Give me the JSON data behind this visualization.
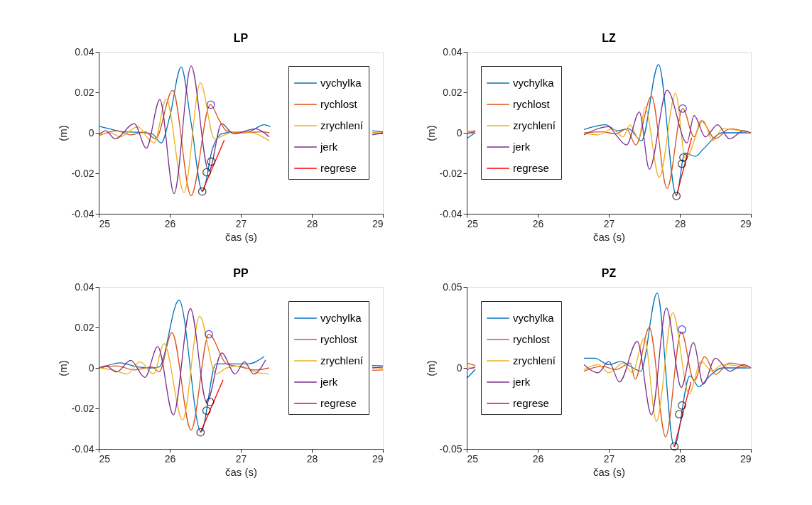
{
  "chart_data": [
    {
      "type": "line",
      "title": "LP",
      "xlabel": "čas (s)",
      "ylabel": "(m)",
      "xlim": [
        25,
        29
      ],
      "xticks": [
        25,
        26,
        27,
        28,
        29
      ],
      "ylim": [
        -0.04,
        0.04
      ],
      "yticks": [
        -0.04,
        -0.02,
        0,
        0.02,
        0.04
      ],
      "grid": false,
      "legend": "top right",
      "line_style": "solid",
      "series": [
        {
          "name": "vychylka",
          "color": "#0072bd",
          "x": [
            25.0,
            25.15,
            25.35,
            25.55,
            25.75,
            25.88,
            26.0,
            26.16,
            26.3,
            26.46,
            26.6,
            26.73,
            26.9,
            27.1,
            27.33,
            27.42,
            27.6,
            28.85,
            29.0
          ],
          "values": [
            0.0033,
            0.002,
            0.0005,
            0.0003,
            -0.0005,
            -0.005,
            0.008,
            0.0325,
            0.005,
            -0.029,
            -0.008,
            -0.0005,
            0.0005,
            0.0005,
            0.004,
            0.003,
            null,
            0.001,
            0.0005
          ]
        },
        {
          "name": "rychlost",
          "color": "#d95319",
          "x": [
            25.0,
            25.25,
            25.45,
            25.65,
            25.8,
            26.04,
            26.3,
            26.57,
            26.7,
            26.8,
            27.0,
            27.3,
            27.4,
            27.6,
            28.85,
            29.0
          ],
          "values": [
            -0.0015,
            0.001,
            -0.001,
            0.0005,
            -0.003,
            0.021,
            -0.031,
            0.014,
            0.006,
            0.001,
            0,
            0.0005,
            0,
            null,
            0,
            -0.0005
          ]
        },
        {
          "name": "zrychlení",
          "color": "#edb120",
          "x": [
            25.0,
            25.17,
            25.3,
            25.55,
            25.7,
            25.78,
            25.95,
            26.2,
            26.43,
            26.63,
            26.77,
            26.9,
            27.1,
            27.25,
            27.4,
            27.6,
            28.85,
            29.0
          ],
          "values": [
            -0.001,
            0,
            -0.002,
            0.003,
            -0.003,
            -0.005,
            0.0166,
            -0.0295,
            0.0247,
            -0.003,
            -0.001,
            0.0005,
            0.0003,
            -0.001,
            -0.004,
            null,
            0,
            0
          ]
        },
        {
          "name": "jerk",
          "color": "#7e2f8e",
          "x": [
            25.0,
            25.1,
            25.23,
            25.5,
            25.67,
            25.86,
            26.06,
            26.3,
            26.55,
            26.73,
            26.9,
            27.2,
            27.4,
            27.6,
            28.85,
            29.0
          ],
          "values": [
            -0.001,
            0.001,
            -0.003,
            0.0045,
            -0.0076,
            0.0164,
            -0.03,
            0.033,
            -0.019,
            0.0045,
            -0.0005,
            0.002,
            -0.002,
            null,
            -0.001,
            0
          ]
        },
        {
          "name": "regrese",
          "color": "#ff0000",
          "x": [
            26.457,
            26.767
          ],
          "values": [
            -0.029,
            -0.0036
          ]
        },
        {
          "type": "scatter",
          "marker": "circle",
          "color": "#000000",
          "x": [
            26.457,
            26.52,
            26.583
          ],
          "values": [
            -0.029,
            -0.0195,
            -0.0142
          ]
        },
        {
          "type": "scatter",
          "marker": "circle",
          "color": "#0000ff",
          "x": [
            26.577
          ],
          "values": [
            0.0139
          ]
        }
      ]
    },
    {
      "type": "line",
      "title": "LZ",
      "xlabel": "čas (s)",
      "ylabel": "(m)",
      "xlim": [
        25,
        29
      ],
      "xticks": [
        25,
        26,
        27,
        28,
        29
      ],
      "ylim": [
        -0.04,
        0.04
      ],
      "yticks": [
        -0.04,
        -0.02,
        0,
        0.02,
        0.04
      ],
      "grid": false,
      "legend": "top left",
      "line_style": "solid",
      "series": [
        {
          "name": "vychylka",
          "color": "#0072bd",
          "x": [
            25.0,
            25.12,
            25.5,
            26.65,
            26.95,
            27.12,
            27.28,
            27.46,
            27.7,
            27.95,
            28.07,
            28.22,
            28.33,
            28.6,
            29.0
          ],
          "values": [
            -0.0028,
            0,
            null,
            0.0016,
            0.004,
            0.001,
            0.002,
            -0.004,
            0.0337,
            -0.031,
            -0.01,
            -0.0116,
            -0.008,
            0,
            0
          ]
        },
        {
          "name": "rychlost",
          "color": "#d95319",
          "x": [
            25.0,
            25.12,
            25.5,
            26.65,
            26.9,
            27.1,
            27.25,
            27.38,
            27.6,
            27.82,
            28.04,
            28.2,
            28.3,
            28.5,
            28.7,
            29.0
          ],
          "values": [
            0.0005,
            0.001,
            null,
            0,
            0.0005,
            -0.0005,
            0.002,
            -0.006,
            0.018,
            -0.0275,
            0.012,
            -0.002,
            0.006,
            -0.003,
            0.002,
            0
          ]
        },
        {
          "name": "zrychlení",
          "color": "#edb120",
          "x": [
            25.0,
            25.12,
            25.5,
            26.65,
            26.85,
            27.05,
            27.2,
            27.3,
            27.42,
            27.51,
            27.71,
            27.94,
            28.08,
            28.33,
            28.46,
            28.6,
            29.0
          ],
          "values": [
            0.0005,
            -0.0005,
            null,
            0,
            -0.001,
            0.002,
            -0.002,
            0.004,
            -0.003,
            0.0125,
            -0.022,
            0.0195,
            -0.0128,
            0.006,
            -0.004,
            0.002,
            0
          ]
        },
        {
          "name": "jerk",
          "color": "#7e2f8e",
          "x": [
            25.0,
            25.12,
            25.5,
            26.65,
            27.0,
            27.1,
            27.25,
            27.43,
            27.57,
            27.82,
            28.1,
            28.2,
            28.36,
            28.53,
            28.7,
            28.9,
            29.0
          ],
          "values": [
            -0.0005,
            0.0005,
            null,
            -0.001,
            0.003,
            -0.001,
            -0.006,
            0.0103,
            -0.018,
            0.021,
            -0.005,
            0.0085,
            -0.002,
            0.004,
            -0.003,
            0.001,
            0
          ]
        },
        {
          "name": "regrese",
          "color": "#ff0000",
          "x": [
            27.952,
            28.166
          ],
          "values": [
            -0.0312,
            -0.0024
          ]
        },
        {
          "type": "scatter",
          "marker": "circle",
          "color": "#000000",
          "x": [
            27.952,
            28.028,
            28.05
          ],
          "values": [
            -0.0312,
            -0.0153,
            -0.0122
          ]
        },
        {
          "type": "scatter",
          "marker": "circle",
          "color": "#0000ff",
          "x": [
            28.04
          ],
          "values": [
            0.012
          ]
        }
      ]
    },
    {
      "type": "line",
      "title": "PP",
      "xlabel": "čas (s)",
      "ylabel": "(m)",
      "xlim": [
        25,
        29
      ],
      "xticks": [
        25,
        26,
        27,
        28,
        29
      ],
      "ylim": [
        -0.04,
        0.04
      ],
      "yticks": [
        -0.04,
        -0.02,
        0,
        0.02,
        0.04
      ],
      "grid": false,
      "legend": "top right",
      "line_style": "solid",
      "series": [
        {
          "name": "vychylka",
          "color": "#0072bd",
          "x": [
            25.0,
            25.3,
            25.55,
            25.75,
            25.85,
            26.13,
            26.44,
            26.65,
            26.9,
            27.1,
            27.33,
            27.6,
            28.85,
            29.0
          ],
          "values": [
            -0.0005,
            0.0025,
            0.0005,
            0,
            0.0005,
            0.0335,
            -0.0316,
            0.002,
            0.002,
            0.002,
            0.0056,
            null,
            0.0012,
            0.001
          ]
        },
        {
          "name": "rychlost",
          "color": "#d95319",
          "x": [
            25.0,
            25.25,
            25.5,
            25.75,
            25.85,
            26.03,
            26.3,
            26.55,
            26.8,
            27.0,
            27.2,
            27.4,
            27.6,
            28.85,
            29.0
          ],
          "values": [
            0,
            0.001,
            -0.001,
            0.0005,
            -0.002,
            0.0174,
            -0.0307,
            0.0166,
            0.002,
            0.0005,
            -0.001,
            0,
            null,
            -0.0012,
            -0.001
          ]
        },
        {
          "name": "zrychlení",
          "color": "#edb120",
          "x": [
            25.0,
            25.2,
            25.4,
            25.58,
            25.77,
            25.92,
            26.18,
            26.42,
            26.65,
            26.8,
            27.0,
            27.2,
            27.4,
            27.6,
            28.85,
            29.0
          ],
          "values": [
            0,
            -0.001,
            -0.003,
            0.003,
            -0.003,
            0.012,
            -0.0258,
            0.0255,
            -0.003,
            0,
            0.001,
            -0.002,
            -0.003,
            null,
            0.0004,
            -0.0003
          ]
        },
        {
          "name": "jerk",
          "color": "#7e2f8e",
          "x": [
            25.0,
            25.1,
            25.25,
            25.45,
            25.65,
            25.83,
            26.05,
            26.29,
            26.52,
            26.73,
            26.92,
            27.05,
            27.18,
            27.35,
            27.6,
            28.85,
            29.0
          ],
          "values": [
            0,
            0.001,
            -0.002,
            0.0037,
            -0.0047,
            0.0106,
            -0.0232,
            0.0293,
            -0.017,
            0.0074,
            -0.003,
            0.003,
            -0.003,
            0.004,
            null,
            0,
            0.0004
          ]
        },
        {
          "name": "regrese",
          "color": "#ff0000",
          "x": [
            26.433,
            26.75
          ],
          "values": [
            -0.0318,
            -0.0059
          ]
        },
        {
          "type": "scatter",
          "marker": "circle",
          "color": "#000000",
          "x": [
            26.433,
            26.517,
            26.567
          ],
          "values": [
            -0.0318,
            -0.0211,
            -0.0168
          ]
        },
        {
          "type": "scatter",
          "marker": "circle",
          "color": "#0000ff",
          "x": [
            26.55
          ],
          "values": [
            0.0166
          ]
        }
      ]
    },
    {
      "type": "line",
      "title": "PZ",
      "xlabel": "čas (s)",
      "ylabel": "(m)",
      "xlim": [
        25,
        29
      ],
      "xticks": [
        25,
        26,
        27,
        28,
        29
      ],
      "ylim": [
        -0.05,
        0.05
      ],
      "yticks": [
        -0.05,
        0,
        0.05
      ],
      "grid": false,
      "legend": "top left",
      "line_style": "solid",
      "series": [
        {
          "name": "vychylka",
          "color": "#0072bd",
          "x": [
            25.0,
            25.12,
            25.5,
            26.65,
            26.8,
            27.0,
            27.17,
            27.3,
            27.45,
            27.68,
            27.92,
            28.14,
            28.27,
            28.4,
            28.6,
            29.0
          ],
          "values": [
            -0.0065,
            -0.001,
            null,
            0.006,
            0.006,
            0.002,
            0.004,
            0.001,
            -0.002,
            0.0462,
            -0.0485,
            -0.005,
            -0.0117,
            -0.0058,
            0,
            0
          ]
        },
        {
          "name": "rychlost",
          "color": "#d95319",
          "x": [
            25.0,
            25.12,
            25.5,
            26.65,
            26.9,
            27.1,
            27.3,
            27.37,
            27.57,
            27.8,
            28.02,
            28.2,
            28.35,
            28.5,
            28.7,
            29.0
          ],
          "values": [
            0.003,
            0.0015,
            null,
            -0.002,
            0.001,
            -0.001,
            0.003,
            -0.007,
            0.025,
            -0.0426,
            0.0223,
            -0.008,
            0.007,
            -0.004,
            0.003,
            0
          ]
        },
        {
          "name": "zrychlení",
          "color": "#edb120",
          "x": [
            25.0,
            25.12,
            25.5,
            26.65,
            26.85,
            27.0,
            27.2,
            27.33,
            27.5,
            27.67,
            27.9,
            28.13,
            28.3,
            28.45,
            28.6,
            29.0
          ],
          "values": [
            0.0012,
            -0.001,
            null,
            -0.001,
            0.002,
            -0.003,
            0.003,
            -0.003,
            0.0186,
            -0.033,
            0.034,
            -0.016,
            0.004,
            -0.002,
            0.002,
            0
          ]
        },
        {
          "name": "jerk",
          "color": "#7e2f8e",
          "x": [
            25.0,
            25.12,
            25.5,
            26.65,
            26.85,
            27.0,
            27.15,
            27.4,
            27.6,
            27.81,
            28.02,
            28.19,
            28.33,
            28.5,
            28.7,
            28.9,
            29.0
          ],
          "values": [
            -0.001,
            0.0005,
            null,
            0.002,
            -0.003,
            0.004,
            -0.0087,
            0.0164,
            -0.029,
            0.037,
            -0.012,
            0.0156,
            -0.01,
            0.006,
            -0.002,
            0.002,
            0
          ]
        },
        {
          "name": "regrese",
          "color": "#ff0000",
          "x": [
            27.923,
            28.156
          ],
          "values": [
            -0.0485,
            -0.0087
          ]
        },
        {
          "type": "scatter",
          "marker": "circle",
          "color": "#000000",
          "x": [
            27.923,
            27.99,
            28.03
          ],
          "values": [
            -0.0485,
            -0.0286,
            -0.0232
          ]
        },
        {
          "type": "scatter",
          "marker": "circle",
          "color": "#0000ff",
          "x": [
            28.03
          ],
          "values": [
            0.0237
          ]
        }
      ]
    }
  ]
}
